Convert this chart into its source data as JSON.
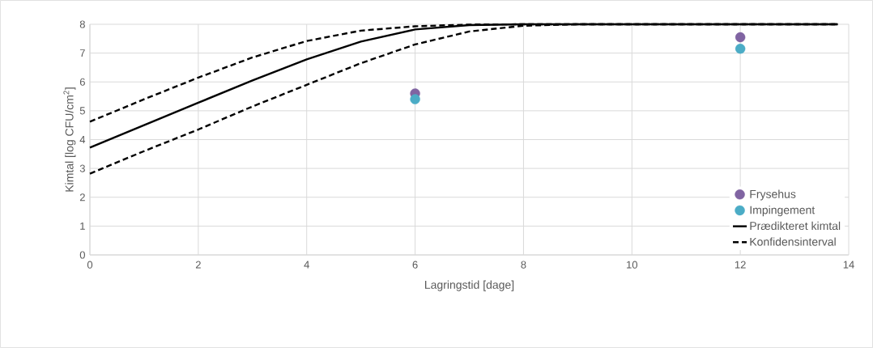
{
  "chart_data": {
    "type": "line",
    "xlabel": "Lagringstid [dage]",
    "ylabel": "Kimtal [log CFU/cm$^{2}$]",
    "xlim": [
      0,
      14
    ],
    "ylim": [
      0,
      8
    ],
    "xticks": [
      0,
      2,
      4,
      6,
      8,
      10,
      12,
      14
    ],
    "yticks": [
      0,
      1,
      2,
      3,
      4,
      5,
      6,
      7,
      8
    ],
    "grid": true,
    "legend": "bottom right",
    "series": [
      {
        "name": "Frysehus",
        "type": "scatter",
        "marker": "circle",
        "color": "#8064a2",
        "x": [
          6,
          12
        ],
        "values": [
          5.6,
          7.55
        ]
      },
      {
        "name": "Impingement",
        "type": "scatter",
        "marker": "circle",
        "color": "#4bacc6",
        "x": [
          6,
          12
        ],
        "values": [
          5.4,
          7.15
        ]
      },
      {
        "name": "Prædikteret kimtal",
        "type": "line",
        "line_style": "solid",
        "color": "#000000",
        "x": [
          0,
          1,
          2,
          3,
          4,
          5,
          6,
          7,
          8,
          13.8
        ],
        "values": [
          3.72,
          4.5,
          5.28,
          6.05,
          6.78,
          7.4,
          7.82,
          7.97,
          8.0,
          8.0
        ]
      },
      {
        "name": "Konfidensinterval",
        "type": "line",
        "line_style": "dashed",
        "color": "#000000",
        "x": [
          0,
          1,
          2,
          3,
          4,
          5,
          6,
          7,
          8,
          13.8
        ],
        "values": [
          4.62,
          5.4,
          6.15,
          6.85,
          7.42,
          7.78,
          7.93,
          7.99,
          8.0,
          8.0
        ]
      },
      {
        "type": "line",
        "line_style": "dashed",
        "color": "#000000",
        "x": [
          0,
          1,
          2,
          3,
          4,
          5,
          6,
          7,
          8,
          9,
          13.8
        ],
        "values": [
          2.82,
          3.6,
          4.35,
          5.15,
          5.9,
          6.65,
          7.3,
          7.75,
          7.95,
          8.0,
          8.0
        ]
      }
    ]
  }
}
